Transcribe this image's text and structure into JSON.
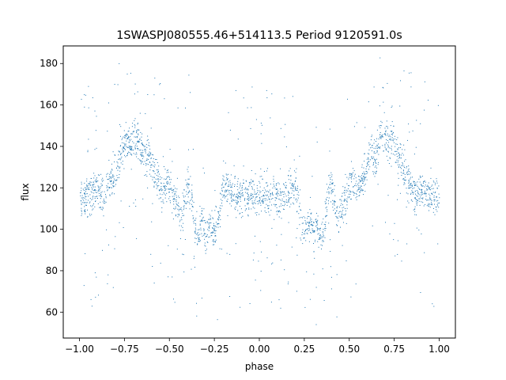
{
  "chart_data": {
    "type": "scatter",
    "title": "1SWASPJ080555.46+514113.5 Period 9120591.0s",
    "xlabel": "phase",
    "ylabel": "flux",
    "xlim": [
      -1.09,
      1.09
    ],
    "ylim": [
      47.5,
      188.5
    ],
    "xticks": [
      -1.0,
      -0.75,
      -0.5,
      -0.25,
      0.0,
      0.25,
      0.5,
      0.75,
      1.0
    ],
    "xtick_labels": [
      "−1.00",
      "−0.75",
      "−0.50",
      "−0.25",
      "0.00",
      "0.25",
      "0.50",
      "0.75",
      "1.00"
    ],
    "yticks": [
      60,
      80,
      100,
      120,
      140,
      160,
      180
    ],
    "ytick_labels": [
      "60",
      "80",
      "100",
      "120",
      "140",
      "160",
      "180"
    ],
    "grid": false,
    "legend": "none",
    "marker_color": "#1f77b4",
    "series": [
      {
        "description_of_trend": "phase-folded light curve; mirrored at phase 0",
        "values_phase_0_to_1": [
          [
            0.0,
            118
          ],
          [
            0.02,
            116
          ],
          [
            0.04,
            117
          ],
          [
            0.06,
            115
          ],
          [
            0.08,
            118
          ],
          [
            0.1,
            116
          ],
          [
            0.12,
            114
          ],
          [
            0.14,
            116
          ],
          [
            0.16,
            119
          ],
          [
            0.18,
            121
          ],
          [
            0.2,
            122
          ],
          [
            0.22,
            113
          ],
          [
            0.24,
            101
          ],
          [
            0.26,
            99
          ],
          [
            0.28,
            104
          ],
          [
            0.3,
            97
          ],
          [
            0.32,
            103
          ],
          [
            0.34,
            96
          ],
          [
            0.36,
            101
          ],
          [
            0.38,
            117
          ],
          [
            0.4,
            122
          ],
          [
            0.42,
            110
          ],
          [
            0.44,
            105
          ],
          [
            0.46,
            113
          ],
          [
            0.48,
            116
          ],
          [
            0.5,
            120
          ],
          [
            0.52,
            122
          ],
          [
            0.54,
            118
          ],
          [
            0.56,
            122
          ],
          [
            0.58,
            126
          ],
          [
            0.6,
            131
          ],
          [
            0.62,
            138
          ],
          [
            0.64,
            133
          ],
          [
            0.66,
            139
          ],
          [
            0.68,
            146
          ],
          [
            0.7,
            145
          ],
          [
            0.72,
            141
          ],
          [
            0.74,
            143
          ],
          [
            0.76,
            139
          ],
          [
            0.78,
            133
          ],
          [
            0.8,
            128
          ],
          [
            0.82,
            124
          ],
          [
            0.84,
            122
          ],
          [
            0.86,
            118
          ],
          [
            0.88,
            117
          ],
          [
            0.9,
            120
          ],
          [
            0.92,
            119
          ],
          [
            0.94,
            116
          ],
          [
            0.96,
            117
          ],
          [
            0.98,
            114
          ],
          [
            1.0,
            118
          ]
        ]
      }
    ]
  }
}
